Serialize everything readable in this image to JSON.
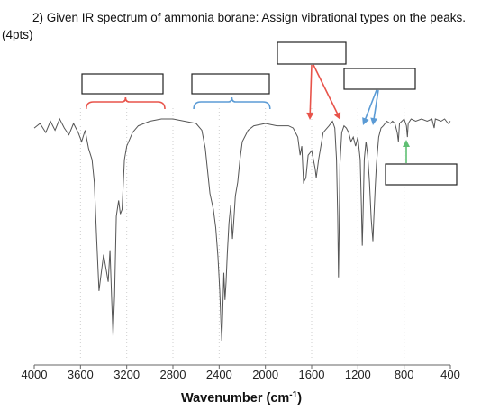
{
  "question": {
    "text": "2) Given IR spectrum of ammonia borane: Assign vibrational types on the peaks. (4pts)"
  },
  "chart_data": {
    "type": "line",
    "xlabel": "Wavenumber (cm",
    "xlabel_sup": "-1",
    "xlabel_close": ")",
    "x_reversed": true,
    "xlim": [
      4000,
      400
    ],
    "xticks": [
      "4000",
      "3600",
      "3200",
      "2800",
      "2400",
      "2000",
      "1600",
      "1200",
      "800",
      "400"
    ],
    "grid": "vertical-dotted",
    "series": [
      {
        "color": "#555555",
        "points": [
          [
            4000,
            0.06
          ],
          [
            3950,
            0.04
          ],
          [
            3900,
            0.08
          ],
          [
            3860,
            0.03
          ],
          [
            3820,
            0.07
          ],
          [
            3780,
            0.02
          ],
          [
            3740,
            0.06
          ],
          [
            3700,
            0.09
          ],
          [
            3660,
            0.04
          ],
          [
            3620,
            0.08
          ],
          [
            3590,
            0.12
          ],
          [
            3560,
            0.07
          ],
          [
            3530,
            0.15
          ],
          [
            3500,
            0.2
          ],
          [
            3480,
            0.3
          ],
          [
            3460,
            0.55
          ],
          [
            3440,
            0.78
          ],
          [
            3420,
            0.7
          ],
          [
            3400,
            0.62
          ],
          [
            3380,
            0.68
          ],
          [
            3360,
            0.74
          ],
          [
            3345,
            0.6
          ],
          [
            3330,
            0.82
          ],
          [
            3318,
            0.98
          ],
          [
            3305,
            0.8
          ],
          [
            3290,
            0.45
          ],
          [
            3270,
            0.38
          ],
          [
            3255,
            0.44
          ],
          [
            3240,
            0.42
          ],
          [
            3220,
            0.2
          ],
          [
            3200,
            0.14
          ],
          [
            3150,
            0.08
          ],
          [
            3100,
            0.05
          ],
          [
            3000,
            0.03
          ],
          [
            2900,
            0.02
          ],
          [
            2800,
            0.02
          ],
          [
            2700,
            0.03
          ],
          [
            2600,
            0.04
          ],
          [
            2550,
            0.07
          ],
          [
            2520,
            0.15
          ],
          [
            2500,
            0.25
          ],
          [
            2480,
            0.35
          ],
          [
            2450,
            0.42
          ],
          [
            2430,
            0.5
          ],
          [
            2410,
            0.63
          ],
          [
            2395,
            0.78
          ],
          [
            2385,
            0.92
          ],
          [
            2378,
            1.0
          ],
          [
            2370,
            0.88
          ],
          [
            2360,
            0.7
          ],
          [
            2350,
            0.82
          ],
          [
            2340,
            0.74
          ],
          [
            2330,
            0.62
          ],
          [
            2315,
            0.48
          ],
          [
            2300,
            0.4
          ],
          [
            2285,
            0.55
          ],
          [
            2275,
            0.48
          ],
          [
            2260,
            0.36
          ],
          [
            2240,
            0.3
          ],
          [
            2220,
            0.2
          ],
          [
            2200,
            0.12
          ],
          [
            2150,
            0.07
          ],
          [
            2100,
            0.05
          ],
          [
            2000,
            0.04
          ],
          [
            1900,
            0.05
          ],
          [
            1800,
            0.05
          ],
          [
            1760,
            0.06
          ],
          [
            1720,
            0.1
          ],
          [
            1700,
            0.18
          ],
          [
            1685,
            0.14
          ],
          [
            1670,
            0.3
          ],
          [
            1650,
            0.28
          ],
          [
            1630,
            0.18
          ],
          [
            1600,
            0.16
          ],
          [
            1570,
            0.24
          ],
          [
            1560,
            0.28
          ],
          [
            1540,
            0.2
          ],
          [
            1500,
            0.08
          ],
          [
            1450,
            0.05
          ],
          [
            1420,
            0.03
          ],
          [
            1400,
            0.06
          ],
          [
            1385,
            0.2
          ],
          [
            1375,
            0.45
          ],
          [
            1368,
            0.72
          ],
          [
            1362,
            0.52
          ],
          [
            1355,
            0.22
          ],
          [
            1340,
            0.08
          ],
          [
            1320,
            0.05
          ],
          [
            1300,
            0.06
          ],
          [
            1280,
            0.08
          ],
          [
            1260,
            0.12
          ],
          [
            1240,
            0.1
          ],
          [
            1220,
            0.14
          ],
          [
            1200,
            0.1
          ],
          [
            1180,
            0.2
          ],
          [
            1170,
            0.4
          ],
          [
            1162,
            0.58
          ],
          [
            1155,
            0.44
          ],
          [
            1145,
            0.2
          ],
          [
            1130,
            0.12
          ],
          [
            1115,
            0.18
          ],
          [
            1100,
            0.3
          ],
          [
            1085,
            0.46
          ],
          [
            1070,
            0.56
          ],
          [
            1062,
            0.46
          ],
          [
            1050,
            0.32
          ],
          [
            1040,
            0.22
          ],
          [
            1020,
            0.1
          ],
          [
            1000,
            0.06
          ],
          [
            980,
            0.05
          ],
          [
            950,
            0.03
          ],
          [
            920,
            0.04
          ],
          [
            900,
            0.03
          ],
          [
            880,
            0.04
          ],
          [
            860,
            0.08
          ],
          [
            850,
            0.12
          ],
          [
            840,
            0.04
          ],
          [
            820,
            0.03
          ],
          [
            800,
            0.02
          ],
          [
            780,
            0.05
          ],
          [
            772,
            0.1
          ],
          [
            765,
            0.04
          ],
          [
            740,
            0.02
          ],
          [
            700,
            0.03
          ],
          [
            650,
            0.02
          ],
          [
            600,
            0.03
          ],
          [
            560,
            0.02
          ],
          [
            540,
            0.06
          ],
          [
            530,
            0.02
          ],
          [
            480,
            0.03
          ],
          [
            450,
            0.02
          ],
          [
            420,
            0.04
          ],
          [
            400,
            0.03
          ]
        ]
      }
    ],
    "annotations": [
      {
        "kind": "bracket",
        "color": "#e8534a",
        "from": 3550,
        "to": 2870
      },
      {
        "kind": "bracket",
        "color": "#5b9bd5",
        "from": 2620,
        "to": 1960
      },
      {
        "kind": "arrow",
        "color": "#e8534a",
        "from_box": 3
      },
      {
        "kind": "arrow",
        "color": "#5b9bd5",
        "from_box": 4
      },
      {
        "kind": "arrow",
        "color": "#5fbf73",
        "from_box": 5
      }
    ],
    "answer_boxes": [
      {
        "id": 1,
        "text": ""
      },
      {
        "id": 2,
        "text": ""
      },
      {
        "id": 3,
        "text": ""
      },
      {
        "id": 4,
        "text": ""
      },
      {
        "id": 5,
        "text": ""
      }
    ]
  }
}
